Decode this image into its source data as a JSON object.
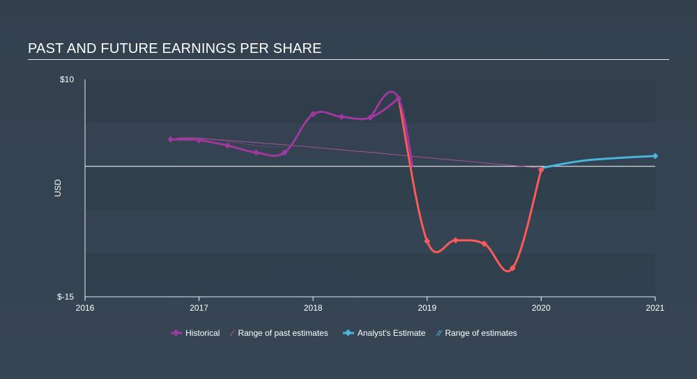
{
  "title": "PAST AND FUTURE EARNINGS PER SHARE",
  "colors": {
    "historical_positive": "#a0389f",
    "historical_negative": "#ff5a5a",
    "estimate": "#4ab6dd",
    "range": "#b7529d",
    "band": "#2f3d4b",
    "zero_line": "#ffffff"
  },
  "legend": {
    "historical": "Historical",
    "range_past": "Range of past estimates",
    "analyst": "Analyst's Estimate",
    "range_est": "Range of estimates"
  },
  "chart_data": {
    "type": "line",
    "title": "PAST AND FUTURE EARNINGS PER SHARE",
    "xlabel": "",
    "ylabel": "USD",
    "xlim": [
      2016,
      2021
    ],
    "ylim": [
      -15,
      10
    ],
    "x_ticks": [
      "2016",
      "2017",
      "2018",
      "2019",
      "2020",
      "2021"
    ],
    "y_ticks": [
      "$10",
      "$-15"
    ],
    "grid": "horizontal bands",
    "legend_position": "bottom",
    "series": [
      {
        "name": "Historical",
        "x": [
          2016.75,
          2017.0,
          2017.25,
          2017.5,
          2017.75,
          2018.0,
          2018.25,
          2018.5,
          2018.75,
          2019.0,
          2019.25,
          2019.5,
          2019.75,
          2020.0
        ],
        "y": [
          3.1,
          3.0,
          2.4,
          1.6,
          1.6,
          6.0,
          5.7,
          5.6,
          7.8,
          -8.6,
          -8.5,
          -8.9,
          -11.7,
          -0.4
        ]
      },
      {
        "name": "Range of past estimates",
        "x": [
          2016.75,
          2017.0,
          2018.0,
          2019.0,
          2020.0
        ],
        "y": [
          3.1,
          3.2,
          2.2,
          1.0,
          -0.2
        ]
      },
      {
        "name": "Analyst's Estimate",
        "x": [
          2020.0,
          2021.0
        ],
        "y": [
          -0.2,
          1.2
        ]
      }
    ]
  }
}
